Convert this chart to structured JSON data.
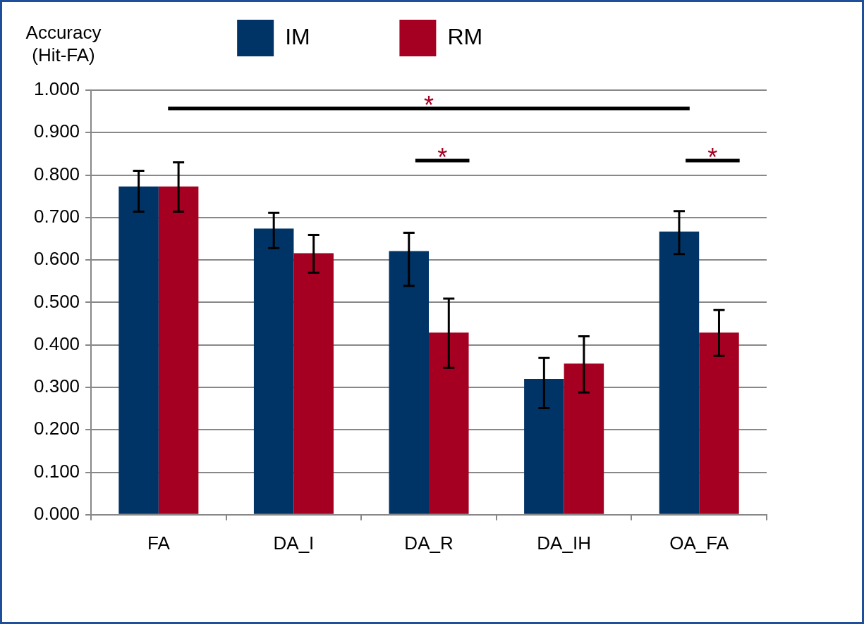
{
  "chart_data": {
    "type": "bar",
    "ylabel": "Accuracy (Hit-FA)",
    "categories": [
      "FA",
      "DA_I",
      "DA_R",
      "DA_IH",
      "OA_FA"
    ],
    "series": [
      {
        "name": "IM",
        "color": "#003366",
        "values": [
          0.773,
          0.674,
          0.621,
          0.32,
          0.667
        ],
        "errors": [
          [
            0.714,
            0.81
          ],
          [
            0.628,
            0.711
          ],
          [
            0.539,
            0.664
          ],
          [
            0.251,
            0.369
          ],
          [
            0.614,
            0.715
          ]
        ]
      },
      {
        "name": "RM",
        "color": "#a50021",
        "values": [
          0.773,
          0.616,
          0.429,
          0.356,
          0.429
        ],
        "errors": [
          [
            0.714,
            0.83
          ],
          [
            0.57,
            0.659
          ],
          [
            0.346,
            0.509
          ],
          [
            0.288,
            0.42
          ],
          [
            0.374,
            0.482
          ]
        ]
      }
    ],
    "ylim": [
      0,
      1
    ],
    "yticks": [
      {
        "value": 0,
        "label": "0.000"
      },
      {
        "value": 0.1,
        "label": "0.100"
      },
      {
        "value": 0.2,
        "label": "0.200"
      },
      {
        "value": 0.3,
        "label": "0.300"
      },
      {
        "value": 0.4,
        "label": "0.400"
      },
      {
        "value": 0.5,
        "label": "0.500"
      },
      {
        "value": 0.6,
        "label": "0.600"
      },
      {
        "value": 0.7,
        "label": "0.700"
      },
      {
        "value": 0.8,
        "label": "0.800"
      },
      {
        "value": 0.9,
        "label": "0.900"
      },
      {
        "value": 1,
        "label": "1.000"
      }
    ],
    "grid": "y",
    "legend": "top",
    "annotations": [
      "*",
      "*",
      "*"
    ]
  }
}
